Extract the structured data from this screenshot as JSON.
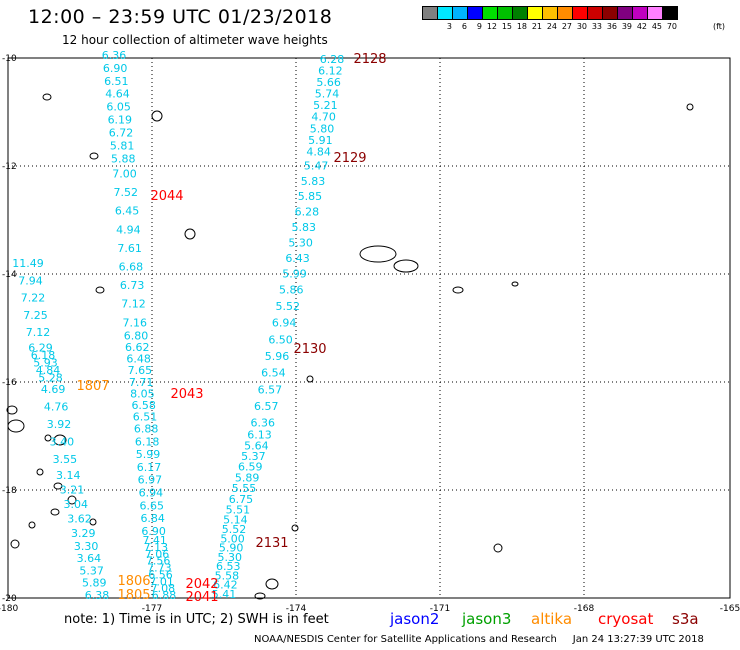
{
  "header": {
    "title": "12:00 – 23:59 UTC 01/23/2018",
    "subtitle": "12 hour collection of altimeter wave heights"
  },
  "scale": {
    "colors": [
      "#808080",
      "#00e8ff",
      "#00b4ff",
      "#0000ff",
      "#00e000",
      "#00c000",
      "#008000",
      "#ffff00",
      "#ffc000",
      "#ff8c00",
      "#ff0000",
      "#cc0000",
      "#8b0000",
      "#800080",
      "#c000c0",
      "#ff80ff",
      "#000000"
    ],
    "labels": [
      "",
      "3",
      "6",
      "9",
      "12",
      "15",
      "18",
      "21",
      "24",
      "27",
      "30",
      "33",
      "36",
      "39",
      "42",
      "45",
      "70"
    ],
    "unit": "(ft)"
  },
  "axes": {
    "lon_labels": [
      "-180",
      "-177",
      "-174",
      "-171",
      "-168",
      "-165"
    ],
    "lat_labels": [
      "-10",
      "-12",
      "-14",
      "-16",
      "-18",
      "-20"
    ]
  },
  "track_labels": [
    {
      "text": "2128",
      "color": "#8b0000"
    },
    {
      "text": "2129",
      "color": "#8b0000"
    },
    {
      "text": "2044",
      "color": "#ff0000"
    },
    {
      "text": "2130",
      "color": "#8b0000"
    },
    {
      "text": "1807",
      "color": "#ff8c00"
    },
    {
      "text": "2043",
      "color": "#ff0000"
    },
    {
      "text": "2131",
      "color": "#8b0000"
    },
    {
      "text": "1806",
      "color": "#ff8c00"
    },
    {
      "text": "1805",
      "color": "#ff8c00"
    },
    {
      "text": "2042",
      "color": "#ff0000"
    },
    {
      "text": "2041",
      "color": "#ff0000"
    }
  ],
  "tracks": {
    "cryosat_2128": [
      "6.28",
      "6.12",
      "5.66",
      "5.74",
      "5.21",
      "4.70",
      "5.80",
      "5.91",
      "4.84",
      "5.47",
      "5.83",
      "5.85",
      "6.28",
      "5.83",
      "5.30",
      "6.43",
      "5.99",
      "5.86",
      "5.52",
      "6.94",
      "6.50",
      "5.96",
      "6.54",
      "6.57",
      "6.57",
      "6.36",
      "6.13",
      "5.64",
      "5.37",
      "6.59",
      "5.89",
      "5.55",
      "6.75",
      "5.51",
      "5.14",
      "5.52",
      "5.00",
      "5.90",
      "5.30",
      "6.53",
      "5.58",
      "6.42",
      "5.41"
    ],
    "cryosat_2044": [
      "6.36",
      "6.90",
      "6.51",
      "4.64",
      "6.05",
      "6.19",
      "6.72",
      "5.81",
      "5.88",
      "7.00",
      "7.52",
      "6.45",
      "4.94",
      "7.61",
      "6.68",
      "6.73",
      "7.12",
      "7.16",
      "6.80",
      "6.62",
      "6.48",
      "7.65",
      "7.71",
      "8.05",
      "6.58",
      "6.51",
      "6.88",
      "6.18",
      "5.99",
      "6.17",
      "6.97",
      "6.94",
      "6.65",
      "6.84",
      "6.90",
      "7.41",
      "7.13",
      "7.06",
      "7.56",
      "7.73",
      "6.56",
      "7.01",
      "7.08",
      "6.88"
    ],
    "altika_1807": [
      "11.49",
      "7.94",
      "7.22",
      "7.25",
      "7.12",
      "6.29",
      "6.18",
      "5.93",
      "4.84",
      "5.28",
      "4.69",
      "4.76",
      "3.92",
      "3.40",
      "3.55",
      "3.14",
      "3.21",
      "3.04",
      "3.62",
      "3.29",
      "3.30",
      "3.64",
      "5.37",
      "5.89",
      "6.38"
    ]
  },
  "legend": {
    "note": "note: 1) Time is in UTC; 2) SWH is in feet",
    "satellites": [
      {
        "name": "jason2",
        "color": "#0000ff"
      },
      {
        "name": "jason3",
        "color": "#00a000"
      },
      {
        "name": "altika",
        "color": "#ff8c00"
      },
      {
        "name": "cryosat",
        "color": "#ff0000"
      },
      {
        "name": "s3a",
        "color": "#8b0000"
      }
    ]
  },
  "footer": {
    "credit": "NOAA/NESDIS Center for Satellite Applications and Research",
    "timestamp": "Jan 24 13:27:39 UTC 2018"
  }
}
